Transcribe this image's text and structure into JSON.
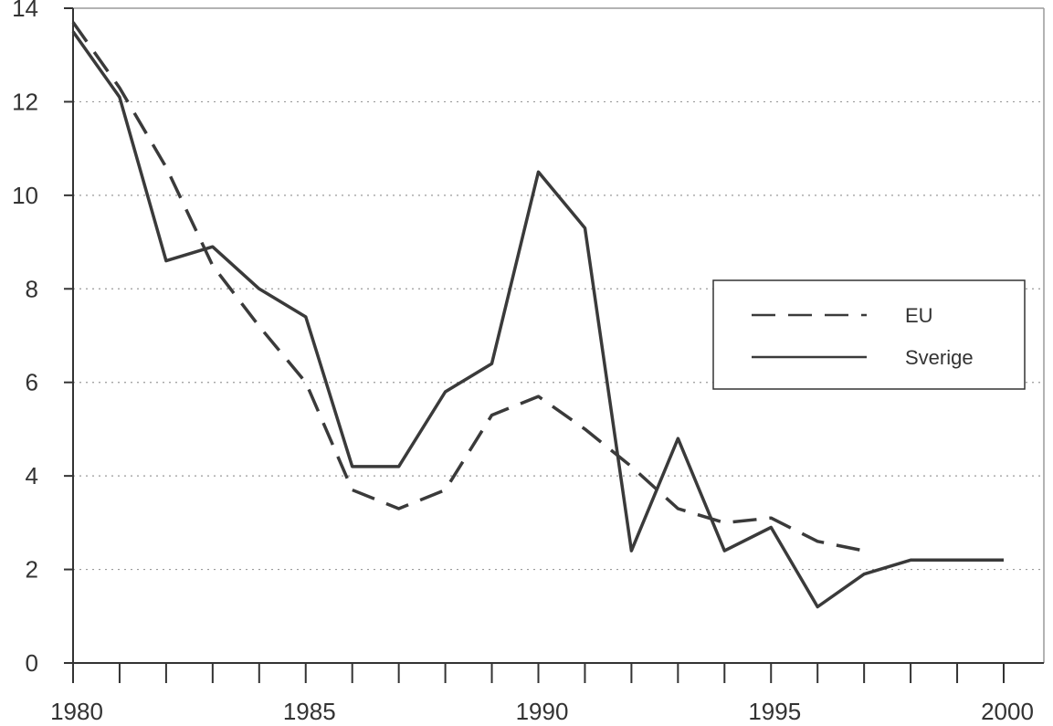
{
  "chart_data": {
    "type": "line",
    "title": "",
    "xlabel": "",
    "ylabel": "",
    "xlim": [
      1980,
      2000
    ],
    "ylim": [
      0,
      14
    ],
    "x_ticks": [
      1980,
      1985,
      1990,
      1995,
      2000
    ],
    "y_ticks": [
      0,
      2,
      4,
      6,
      8,
      10,
      12,
      14
    ],
    "x_tick_labels": [
      "1980",
      "1985",
      "1990",
      "1995",
      "2000"
    ],
    "y_tick_labels": [
      "0",
      "2",
      "4",
      "6",
      "8",
      "10",
      "12",
      "14"
    ],
    "grid": "horizontal dotted",
    "legend_position": "right",
    "series": [
      {
        "name": "EU",
        "style": "dashed",
        "x": [
          1980,
          1981,
          1982,
          1983,
          1984,
          1985,
          1986,
          1987,
          1988,
          1989,
          1990,
          1991,
          1992,
          1993,
          1994,
          1995,
          1996,
          1997
        ],
        "values": [
          13.7,
          12.3,
          10.6,
          8.5,
          7.2,
          6.0,
          3.7,
          3.3,
          3.7,
          5.3,
          5.7,
          5.0,
          4.2,
          3.3,
          3.0,
          3.1,
          2.6,
          2.4
        ]
      },
      {
        "name": "Sverige",
        "style": "solid",
        "x": [
          1980,
          1981,
          1982,
          1983,
          1984,
          1985,
          1986,
          1987,
          1988,
          1989,
          1990,
          1991,
          1992,
          1993,
          1994,
          1995,
          1996,
          1997,
          1998,
          1999,
          2000
        ],
        "values": [
          13.5,
          12.1,
          8.6,
          8.9,
          8.0,
          7.4,
          4.2,
          4.2,
          5.8,
          6.4,
          10.5,
          9.3,
          2.4,
          4.8,
          2.4,
          2.9,
          1.2,
          1.9,
          2.2,
          2.2,
          2.2
        ]
      }
    ],
    "colors": {
      "line": "#3a3a3a",
      "grid": "#9a9a9a",
      "axis": "#333333"
    }
  }
}
